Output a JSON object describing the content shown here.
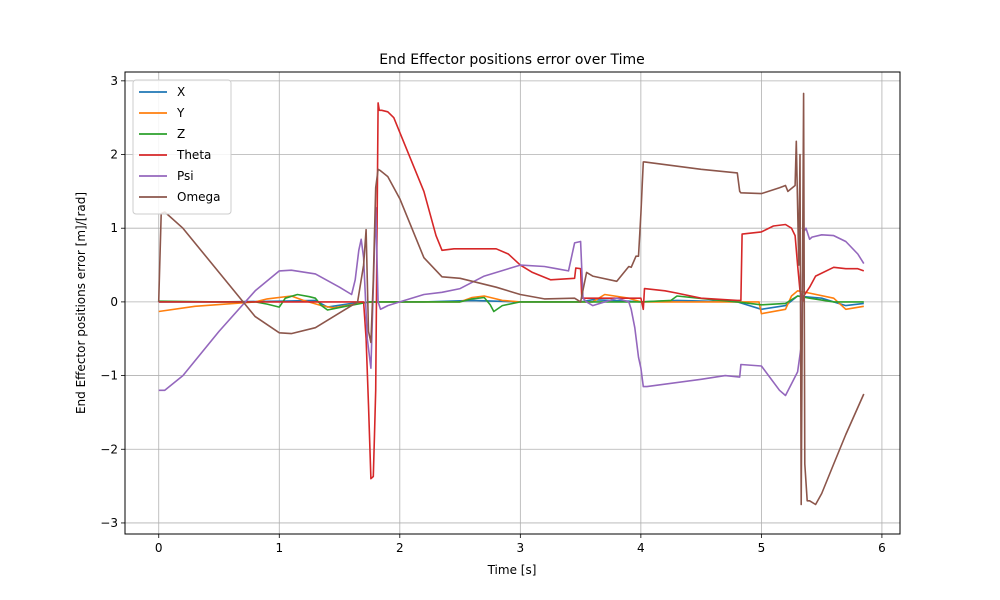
{
  "chart_data": {
    "type": "line",
    "title": "End Effector positions error over Time",
    "xlabel": "Time [s]",
    "ylabel": "End Effector positions error [m]/[rad]",
    "xlim": [
      -0.28,
      6.15
    ],
    "ylim": [
      -3.15,
      3.12
    ],
    "xticks": [
      0,
      1,
      2,
      3,
      4,
      5,
      6
    ],
    "yticks": [
      -3,
      -2,
      -1,
      0,
      1,
      2,
      3
    ],
    "xtick_labels": [
      "0",
      "1",
      "2",
      "3",
      "4",
      "5",
      "6"
    ],
    "ytick_labels": [
      "−3",
      "−2",
      "−1",
      "0",
      "1",
      "2",
      "3"
    ],
    "grid": true,
    "legend_position": "top-left",
    "series": [
      {
        "name": "X",
        "color": "#1f77b4",
        "x": [
          0,
          0.5,
          1.0,
          1.3,
          1.4,
          1.6,
          1.75,
          2.2,
          2.6,
          3.0,
          3.5,
          3.6,
          3.9,
          4.0,
          4.3,
          4.8,
          5.0,
          5.2,
          5.3,
          5.5,
          5.7,
          5.85
        ],
        "y": [
          0.0,
          0.0,
          0.01,
          0.02,
          -0.07,
          -0.02,
          0.0,
          0.0,
          0.02,
          0.0,
          0.0,
          0.03,
          0.01,
          0.0,
          0.02,
          0.0,
          -0.1,
          -0.05,
          0.08,
          0.05,
          -0.05,
          -0.02
        ]
      },
      {
        "name": "Y",
        "color": "#ff7f0e",
        "x": [
          0,
          0.3,
          0.8,
          0.9,
          1.1,
          1.2,
          1.35,
          1.45,
          1.6,
          1.7,
          1.8,
          2.5,
          2.6,
          2.7,
          2.85,
          3.0,
          3.6,
          3.7,
          3.9,
          4.0,
          4.5,
          4.8,
          4.98,
          5.0,
          5.2,
          5.25,
          5.3,
          5.4,
          5.6,
          5.7,
          5.85
        ],
        "y": [
          -0.13,
          -0.06,
          0.0,
          0.04,
          0.08,
          0.02,
          -0.05,
          -0.08,
          -0.04,
          -0.01,
          0.0,
          0.0,
          0.06,
          0.08,
          0.02,
          0.0,
          0.0,
          0.1,
          0.05,
          0.0,
          0.0,
          0.0,
          0.0,
          -0.16,
          -0.1,
          0.08,
          0.15,
          0.12,
          0.05,
          -0.1,
          -0.06
        ]
      },
      {
        "name": "Z",
        "color": "#2ca02c",
        "x": [
          0,
          0.5,
          0.8,
          0.9,
          1.0,
          1.05,
          1.15,
          1.25,
          1.3,
          1.35,
          1.4,
          1.55,
          1.65,
          1.75,
          2.5,
          2.6,
          2.7,
          2.75,
          2.78,
          2.85,
          3.0,
          3.6,
          3.9,
          4.0,
          4.25,
          4.3,
          4.6,
          4.8,
          5.0,
          5.2,
          5.3,
          5.4,
          5.6,
          5.85
        ],
        "y": [
          0.01,
          0.0,
          0.0,
          -0.03,
          -0.07,
          0.05,
          0.1,
          0.07,
          0.05,
          -0.05,
          -0.11,
          -0.06,
          -0.03,
          0.0,
          0.0,
          0.04,
          0.06,
          -0.04,
          -0.13,
          -0.05,
          0.0,
          0.0,
          0.0,
          0.0,
          0.02,
          0.08,
          0.03,
          0.0,
          -0.04,
          -0.02,
          0.08,
          0.05,
          0.0,
          0.0
        ]
      },
      {
        "name": "Theta",
        "color": "#d62728",
        "x": [
          0,
          0.5,
          1.0,
          1.2,
          1.5,
          1.65,
          1.68,
          1.7,
          1.72,
          1.74,
          1.76,
          1.78,
          1.79,
          1.8,
          1.82,
          1.83,
          1.85,
          1.9,
          1.95,
          2.0,
          2.2,
          2.3,
          2.35,
          2.45,
          2.8,
          2.9,
          3.0,
          3.1,
          3.25,
          3.45,
          3.46,
          3.5,
          3.51,
          3.6,
          3.65,
          3.9,
          3.95,
          4.0,
          4.02,
          4.03,
          4.2,
          4.3,
          4.5,
          4.8,
          4.83,
          4.84,
          5.0,
          5.1,
          5.2,
          5.25,
          5.28,
          5.3,
          5.32,
          5.34,
          5.35,
          5.38,
          5.4,
          5.45,
          5.6,
          5.7,
          5.8,
          5.85
        ],
        "y": [
          0.0,
          0.0,
          0.0,
          0.0,
          0.0,
          0.0,
          0.0,
          0.0,
          -0.5,
          -1.4,
          -2.4,
          -2.37,
          -1.8,
          -1.2,
          2.7,
          2.6,
          2.6,
          2.58,
          2.5,
          2.3,
          1.5,
          0.9,
          0.7,
          0.72,
          0.72,
          0.65,
          0.5,
          0.4,
          0.3,
          0.32,
          0.46,
          0.45,
          0.05,
          0.05,
          0.05,
          0.05,
          0.05,
          0.05,
          -0.1,
          0.18,
          0.15,
          0.12,
          0.05,
          0.02,
          0.02,
          0.92,
          0.95,
          1.03,
          1.05,
          1.0,
          0.9,
          0.5,
          0.15,
          0.0,
          0.08,
          0.15,
          0.2,
          0.35,
          0.47,
          0.45,
          0.45,
          0.42
        ]
      },
      {
        "name": "Psi",
        "color": "#9467bd",
        "x": [
          0,
          0.05,
          0.2,
          0.5,
          0.8,
          1.0,
          1.1,
          1.3,
          1.5,
          1.6,
          1.63,
          1.66,
          1.68,
          1.7,
          1.73,
          1.76,
          1.8,
          1.82,
          1.84,
          1.9,
          2.0,
          2.2,
          2.35,
          2.5,
          2.7,
          3.0,
          3.2,
          3.3,
          3.4,
          3.45,
          3.5,
          3.52,
          3.55,
          3.6,
          3.8,
          3.9,
          3.92,
          3.95,
          3.98,
          4.0,
          4.02,
          4.05,
          4.5,
          4.7,
          4.82,
          4.83,
          5.0,
          5.15,
          5.2,
          5.3,
          5.33,
          5.35,
          5.37,
          5.4,
          5.42,
          5.5,
          5.6,
          5.7,
          5.8,
          5.85
        ],
        "y": [
          -1.2,
          -1.2,
          -1.0,
          -0.4,
          0.15,
          0.42,
          0.43,
          0.38,
          0.2,
          0.1,
          0.3,
          0.7,
          0.85,
          0.6,
          -0.5,
          -0.9,
          1.28,
          0.0,
          -0.1,
          -0.05,
          0.0,
          0.1,
          0.13,
          0.18,
          0.35,
          0.5,
          0.48,
          0.45,
          0.42,
          0.8,
          0.82,
          0.05,
          0.0,
          -0.05,
          0.05,
          0.0,
          -0.1,
          -0.35,
          -0.75,
          -0.9,
          -1.15,
          -1.15,
          -1.05,
          -1.0,
          -1.02,
          -0.85,
          -0.87,
          -1.2,
          -1.27,
          -0.95,
          -0.6,
          0.95,
          1.0,
          0.85,
          0.88,
          0.91,
          0.9,
          0.82,
          0.65,
          0.52
        ]
      },
      {
        "name": "Omega",
        "color": "#8c564b",
        "x": [
          0,
          0.02,
          0.05,
          0.2,
          0.5,
          0.8,
          1.0,
          1.1,
          1.3,
          1.5,
          1.65,
          1.7,
          1.72,
          1.74,
          1.76,
          1.78,
          1.8,
          1.82,
          1.84,
          1.9,
          2.0,
          2.2,
          2.35,
          2.5,
          2.8,
          3.0,
          3.2,
          3.45,
          3.5,
          3.55,
          3.6,
          3.8,
          3.9,
          3.92,
          3.96,
          3.98,
          4.0,
          4.02,
          4.03,
          4.5,
          4.8,
          4.82,
          4.83,
          5.0,
          5.15,
          5.2,
          5.22,
          5.28,
          5.29,
          5.31,
          5.32,
          5.33,
          5.35,
          5.36,
          5.38,
          5.4,
          5.45,
          5.5,
          5.6,
          5.7,
          5.85
        ],
        "y": [
          0.0,
          1.2,
          1.22,
          1.0,
          0.4,
          -0.2,
          -0.42,
          -0.43,
          -0.35,
          -0.15,
          0.0,
          0.5,
          0.98,
          -0.4,
          -0.55,
          0.3,
          1.55,
          1.8,
          1.78,
          1.7,
          1.4,
          0.6,
          0.34,
          0.32,
          0.2,
          0.1,
          0.04,
          0.05,
          0.0,
          0.4,
          0.35,
          0.28,
          0.48,
          0.47,
          0.62,
          0.62,
          1.2,
          1.9,
          1.9,
          1.8,
          1.75,
          1.5,
          1.48,
          1.47,
          1.55,
          1.58,
          1.5,
          1.58,
          2.18,
          0.5,
          2.0,
          -2.75,
          2.83,
          -2.2,
          -2.7,
          -2.7,
          -2.75,
          -2.6,
          -2.2,
          -1.8,
          -1.25
        ]
      }
    ]
  }
}
